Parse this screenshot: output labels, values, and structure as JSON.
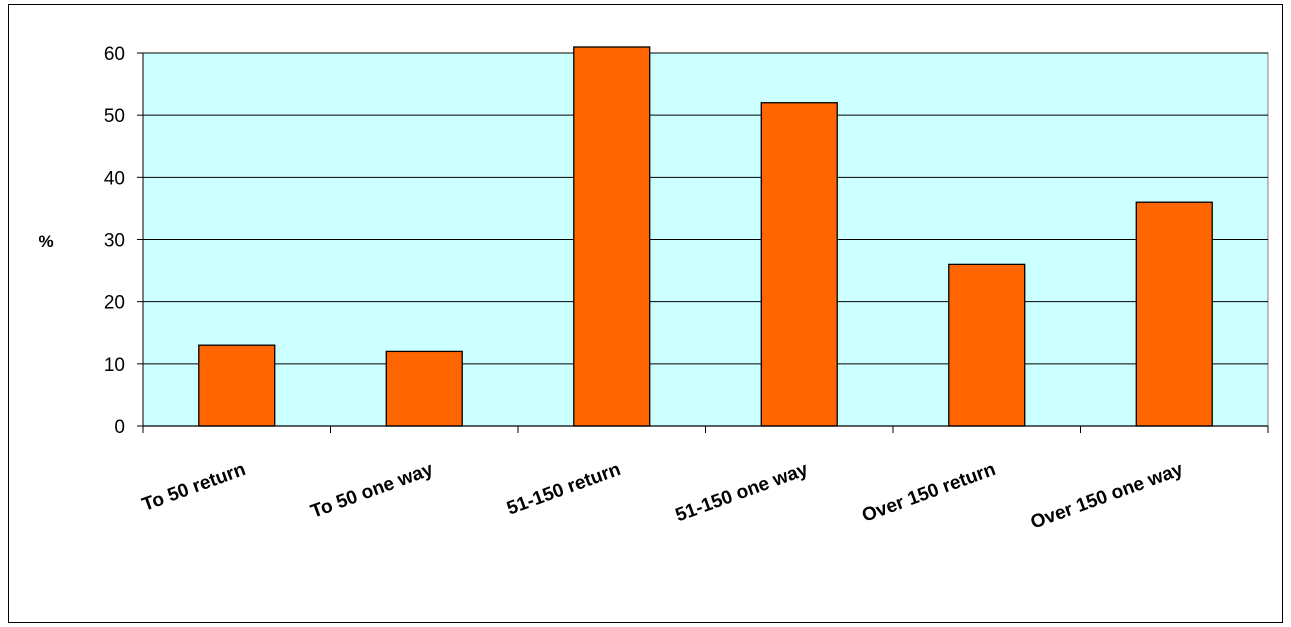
{
  "chart_data": {
    "type": "bar",
    "title": "",
    "xlabel": "",
    "ylabel": "%",
    "categories": [
      "To 50 return",
      "To 50 one way",
      "51-150 return",
      "51-150 one way",
      "Over 150 return",
      "Over 150 one way"
    ],
    "values": [
      13,
      12,
      61,
      52,
      26,
      36
    ],
    "ylim": [
      0,
      60
    ],
    "yticks": [
      "0",
      "10",
      "20",
      "30",
      "40",
      "50",
      "60"
    ],
    "grid": true,
    "legend": "none",
    "colors": {
      "bar": "#FF6600",
      "plot_background": "#CCFFFF",
      "gridline": "#000000"
    }
  }
}
